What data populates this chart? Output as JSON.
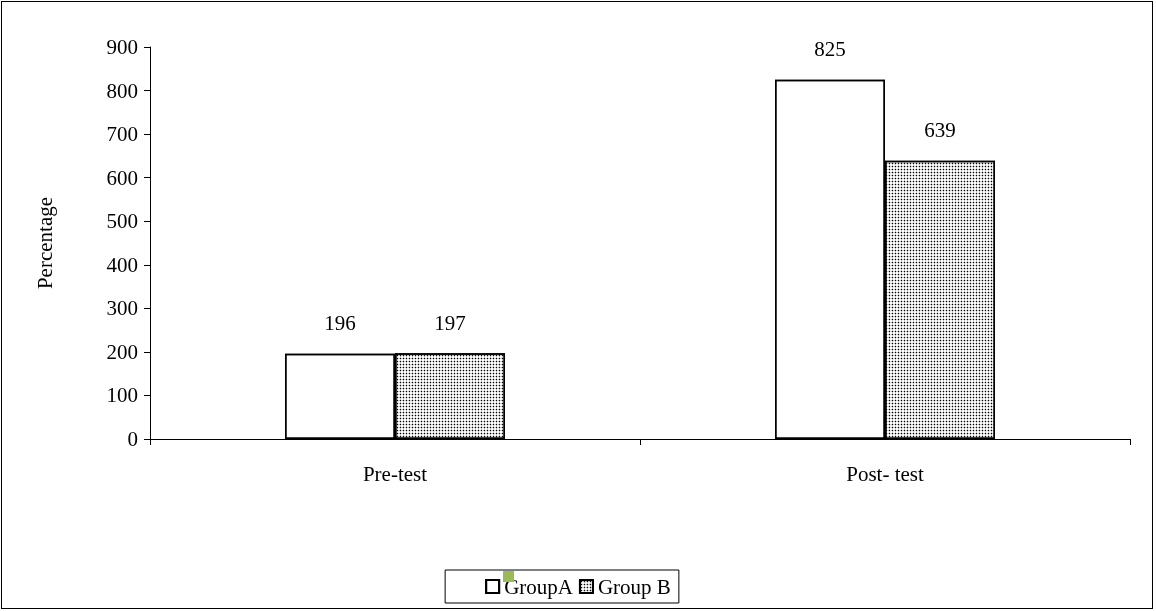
{
  "chart_data": {
    "type": "bar",
    "ylabel": "Percentage",
    "categories": [
      "Pre-test",
      "Post- test"
    ],
    "series": [
      {
        "name": "GroupA",
        "color": "#ffffff",
        "values": [
          196,
          825
        ]
      },
      {
        "name": "Group B",
        "color": "#ffffff",
        "values": [
          197,
          639
        ]
      }
    ],
    "ylim": [
      0,
      900
    ],
    "yticks": [
      0,
      100,
      200,
      300,
      400,
      500,
      600,
      700,
      800,
      900
    ],
    "grid": false,
    "legend": "bottom",
    "data_labels": true
  }
}
